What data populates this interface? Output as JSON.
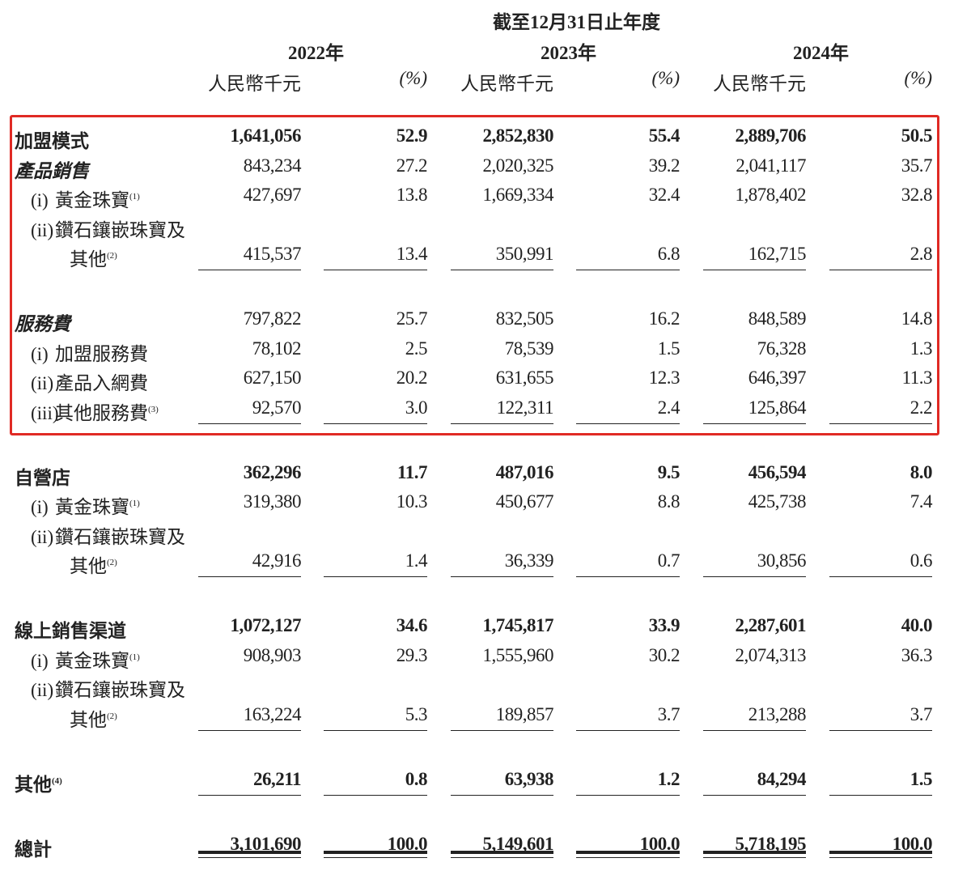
{
  "header": {
    "period_title": "截至12月31日止年度",
    "years": [
      "2022年",
      "2023年",
      "2024年"
    ],
    "amount_unit": "人民幣千元",
    "pct_unit": "(%)"
  },
  "highlight_color": "#e02a24",
  "rows": [
    {
      "label": "加盟模式",
      "style": "bold",
      "values": [
        "1,641,056",
        "52.9",
        "2,852,830",
        "55.4",
        "2,889,706",
        "50.5"
      ]
    },
    {
      "label": "產品銷售",
      "style": "ital",
      "values": [
        "843,234",
        "27.2",
        "2,020,325",
        "39.2",
        "2,041,117",
        "35.7"
      ]
    },
    {
      "prefix": "(i)",
      "label": "黃金珠寶",
      "note": "(1)",
      "values": [
        "427,697",
        "13.8",
        "1,669,334",
        "32.4",
        "1,878,402",
        "32.8"
      ]
    },
    {
      "prefix": "(ii)",
      "label": "鑽石鑲嵌珠寶及",
      "continuation": "其他",
      "note": "(2)",
      "values": [
        "415,537",
        "13.4",
        "350,991",
        "6.8",
        "162,715",
        "2.8"
      ],
      "underline": true
    },
    {
      "label": "服務費",
      "style": "ital",
      "values": [
        "797,822",
        "25.7",
        "832,505",
        "16.2",
        "848,589",
        "14.8"
      ],
      "gap_before": true
    },
    {
      "prefix": "(i)",
      "label": "加盟服務費",
      "values": [
        "78,102",
        "2.5",
        "78,539",
        "1.5",
        "76,328",
        "1.3"
      ]
    },
    {
      "prefix": "(ii)",
      "label": "產品入網費",
      "values": [
        "627,150",
        "20.2",
        "631,655",
        "12.3",
        "646,397",
        "11.3"
      ]
    },
    {
      "prefix": "(iii)",
      "label": "其他服務費",
      "note": "(3)",
      "values": [
        "92,570",
        "3.0",
        "122,311",
        "2.4",
        "125,864",
        "2.2"
      ],
      "underline": true
    },
    {
      "label": "自營店",
      "style": "bold",
      "values": [
        "362,296",
        "11.7",
        "487,016",
        "9.5",
        "456,594",
        "8.0"
      ],
      "gap_before": true
    },
    {
      "prefix": "(i)",
      "label": "黃金珠寶",
      "note": "(1)",
      "values": [
        "319,380",
        "10.3",
        "450,677",
        "8.8",
        "425,738",
        "7.4"
      ]
    },
    {
      "prefix": "(ii)",
      "label": "鑽石鑲嵌珠寶及",
      "continuation": "其他",
      "note": "(2)",
      "values": [
        "42,916",
        "1.4",
        "36,339",
        "0.7",
        "30,856",
        "0.6"
      ],
      "underline": true
    },
    {
      "label": "線上銷售渠道",
      "style": "bold",
      "values": [
        "1,072,127",
        "34.6",
        "1,745,817",
        "33.9",
        "2,287,601",
        "40.0"
      ],
      "gap_before": true
    },
    {
      "prefix": "(i)",
      "label": "黃金珠寶",
      "note": "(1)",
      "values": [
        "908,903",
        "29.3",
        "1,555,960",
        "30.2",
        "2,074,313",
        "36.3"
      ]
    },
    {
      "prefix": "(ii)",
      "label": "鑽石鑲嵌珠寶及",
      "continuation": "其他",
      "note": "(2)",
      "values": [
        "163,224",
        "5.3",
        "189,857",
        "3.7",
        "213,288",
        "3.7"
      ],
      "underline": true
    },
    {
      "label": "其他",
      "style": "bold",
      "note": "(4)",
      "values": [
        "26,211",
        "0.8",
        "63,938",
        "1.2",
        "84,294",
        "1.5"
      ],
      "underline": true,
      "gap_before": true
    },
    {
      "label": "總計",
      "style": "bold",
      "values": [
        "3,101,690",
        "100.0",
        "5,149,601",
        "100.0",
        "5,718,195",
        "100.0"
      ],
      "double_underline": true,
      "gap_before": true
    }
  ]
}
